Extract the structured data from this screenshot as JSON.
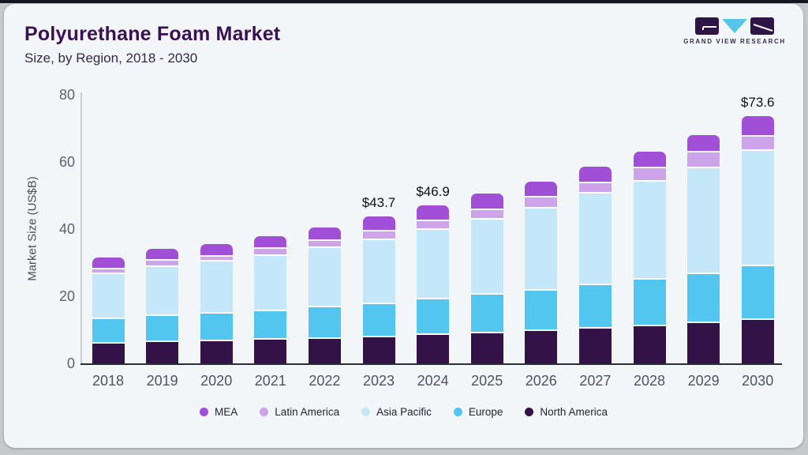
{
  "header": {
    "title": "Polyurethane Foam Market",
    "subtitle": "Size, by Region, 2018 - 2030"
  },
  "logo": {
    "brand": "GRAND VIEW RESEARCH",
    "dark_color": "#2f1546",
    "accent_color": "#56c5e8"
  },
  "chart_data": {
    "type": "bar",
    "stacked": true,
    "title": "Polyurethane Foam Market",
    "subtitle": "Size, by Region, 2018 - 2030",
    "ylabel": "Market Size (US$B)",
    "xlabel": "",
    "ylim": [
      0,
      80
    ],
    "yticks": [
      0,
      20,
      40,
      60,
      80
    ],
    "grid": false,
    "legend_position": "bottom",
    "categories": [
      "2018",
      "2019",
      "2020",
      "2021",
      "2022",
      "2023",
      "2024",
      "2025",
      "2026",
      "2027",
      "2028",
      "2029",
      "2030"
    ],
    "series": [
      {
        "name": "North America",
        "color": "#331347",
        "values": [
          6.3,
          6.7,
          7.0,
          7.4,
          7.8,
          8.3,
          8.9,
          9.5,
          10.1,
          10.9,
          11.5,
          12.4,
          13.3
        ]
      },
      {
        "name": "Europe",
        "color": "#53c6ef",
        "values": [
          7.3,
          7.8,
          8.3,
          8.5,
          9.3,
          9.9,
          10.5,
          11.3,
          12.1,
          12.8,
          13.9,
          14.7,
          16.1
        ]
      },
      {
        "name": "Asia Pacific",
        "color": "#c4e7f9",
        "values": [
          13.3,
          14.7,
          15.4,
          16.6,
          17.6,
          19.0,
          20.8,
          22.4,
          24.4,
          27.2,
          29.1,
          31.5,
          34.2
        ]
      },
      {
        "name": "Latin America",
        "color": "#cda4ea",
        "values": [
          1.6,
          1.7,
          1.6,
          2.1,
          2.2,
          2.4,
          2.6,
          2.9,
          3.1,
          3.1,
          4.0,
          4.5,
          4.4
        ]
      },
      {
        "name": "MEA",
        "color": "#a04fd6",
        "values": [
          3.0,
          3.1,
          3.2,
          3.3,
          3.6,
          4.1,
          4.1,
          4.3,
          4.3,
          4.5,
          4.5,
          4.8,
          5.6
        ]
      }
    ],
    "totals": [
      31.5,
      34.0,
      35.5,
      37.9,
      40.5,
      43.7,
      46.9,
      50.4,
      54.0,
      58.5,
      63.0,
      67.9,
      73.6
    ],
    "value_labels": [
      {
        "category": "2023",
        "text": "$43.7"
      },
      {
        "category": "2024",
        "text": "$46.9"
      },
      {
        "category": "2030",
        "text": "$73.6"
      }
    ]
  },
  "legend": {
    "items": [
      {
        "label": "MEA",
        "color": "#a04fd6"
      },
      {
        "label": "Latin America",
        "color": "#cda4ea"
      },
      {
        "label": "Asia Pacific",
        "color": "#c4e7f9"
      },
      {
        "label": "Europe",
        "color": "#53c6ef"
      },
      {
        "label": "North America",
        "color": "#331347"
      }
    ]
  }
}
